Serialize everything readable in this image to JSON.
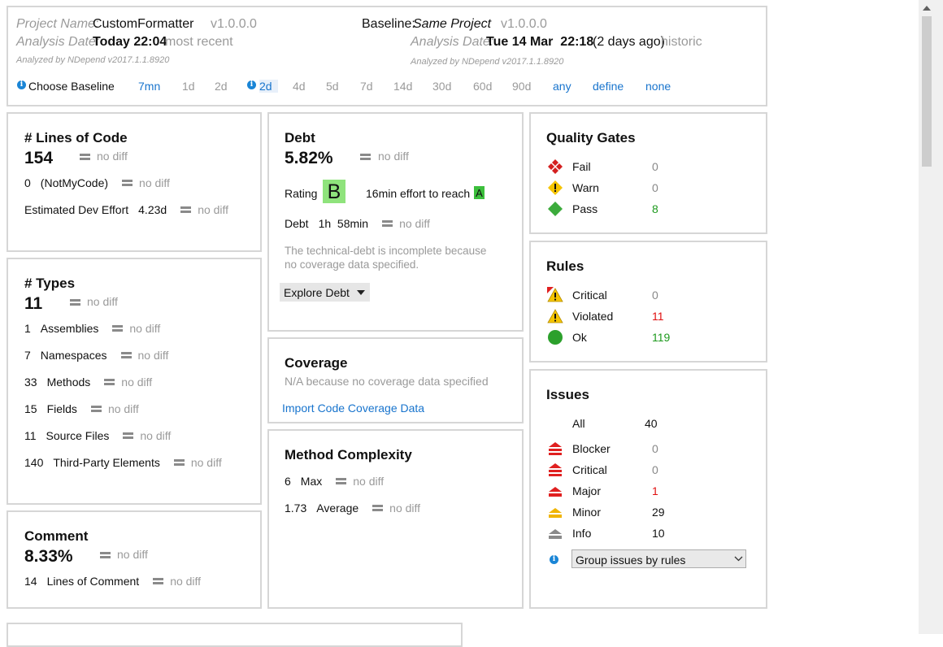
{
  "header": {
    "project": {
      "label": "Project Name:",
      "name": "CustomFormatter",
      "version": "v1.0.0.0",
      "date_label": "Analysis Date:",
      "date": "Today 22:04",
      "date_note": "most recent",
      "analyzed_by": "Analyzed by NDepend v2017.1.1.8920"
    },
    "baseline": {
      "label": "Baseline:",
      "name": "Same Project",
      "version": "v1.0.0.0",
      "date_label": "Analysis Date:",
      "date": "Tue 14 Mar  22:18",
      "ago": "(2 days ago)",
      "date_note": "historic",
      "analyzed_by": "Analyzed by NDepend v2017.1.1.8920"
    },
    "choose_baseline": {
      "label": "Choose Baseline",
      "options": [
        "7mn",
        "1d",
        "2d",
        "2d",
        "4d",
        "5d",
        "7d",
        "14d",
        "30d",
        "60d",
        "90d",
        "any",
        "define",
        "none"
      ]
    }
  },
  "lines_of_code": {
    "title": "# Lines of Code",
    "value": "154",
    "diff": "no diff",
    "rows": [
      {
        "value": "0",
        "label": "(NotMyCode)",
        "diff": "no diff"
      },
      {
        "label": "Estimated Dev Effort",
        "value": "4.23d",
        "diff": "no diff"
      }
    ]
  },
  "types": {
    "title": "# Types",
    "value": "11",
    "diff": "no diff",
    "rows": [
      {
        "value": "1",
        "label": "Assemblies",
        "diff": "no diff"
      },
      {
        "value": "7",
        "label": "Namespaces",
        "diff": "no diff"
      },
      {
        "value": "33",
        "label": "Methods",
        "diff": "no diff"
      },
      {
        "value": "15",
        "label": "Fields",
        "diff": "no diff"
      },
      {
        "value": "11",
        "label": "Source Files",
        "diff": "no diff"
      },
      {
        "value": "140",
        "label": "Third-Party Elements",
        "diff": "no diff"
      }
    ]
  },
  "comment": {
    "title": "Comment",
    "value": "8.33%",
    "diff": "no diff",
    "rows": [
      {
        "value": "14",
        "label": "Lines of Comment",
        "diff": "no diff"
      }
    ]
  },
  "debt": {
    "title": "Debt",
    "value": "5.82%",
    "diff": "no diff",
    "rating_label": "Rating",
    "rating": "B",
    "effort": "16min effort to reach",
    "target_rating": "A",
    "rows": [
      {
        "label": "Debt",
        "value": "1h  58min",
        "diff": "no diff"
      }
    ],
    "note": "The technical-debt is incomplete because\nno coverage data specified.",
    "button": "Explore Debt"
  },
  "coverage": {
    "title": "Coverage",
    "note": "N/A because no coverage data specified",
    "link": "Import Code Coverage Data"
  },
  "method_complexity": {
    "title": "Method Complexity",
    "rows": [
      {
        "value": "6",
        "label": "Max",
        "diff": "no diff"
      },
      {
        "value": "1.73",
        "label": "Average",
        "diff": "no diff"
      }
    ]
  },
  "quality_gates": {
    "title": "Quality Gates",
    "rows": [
      {
        "label": "Fail",
        "value": "0"
      },
      {
        "label": "Warn",
        "value": "0"
      },
      {
        "label": "Pass",
        "value": "8"
      }
    ]
  },
  "rules": {
    "title": "Rules",
    "rows": [
      {
        "label": "Critical",
        "value": "0"
      },
      {
        "label": "Violated",
        "value": "11"
      },
      {
        "label": "Ok",
        "value": "119"
      }
    ]
  },
  "issues": {
    "title": "Issues",
    "rows": [
      {
        "label": "All",
        "value": "40"
      },
      {
        "label": "Blocker",
        "value": "0"
      },
      {
        "label": "Critical",
        "value": "0"
      },
      {
        "label": "Major",
        "value": "1"
      },
      {
        "label": "Minor",
        "value": "29"
      },
      {
        "label": "Info",
        "value": "10"
      }
    ],
    "group_by": "Group issues by rules"
  }
}
